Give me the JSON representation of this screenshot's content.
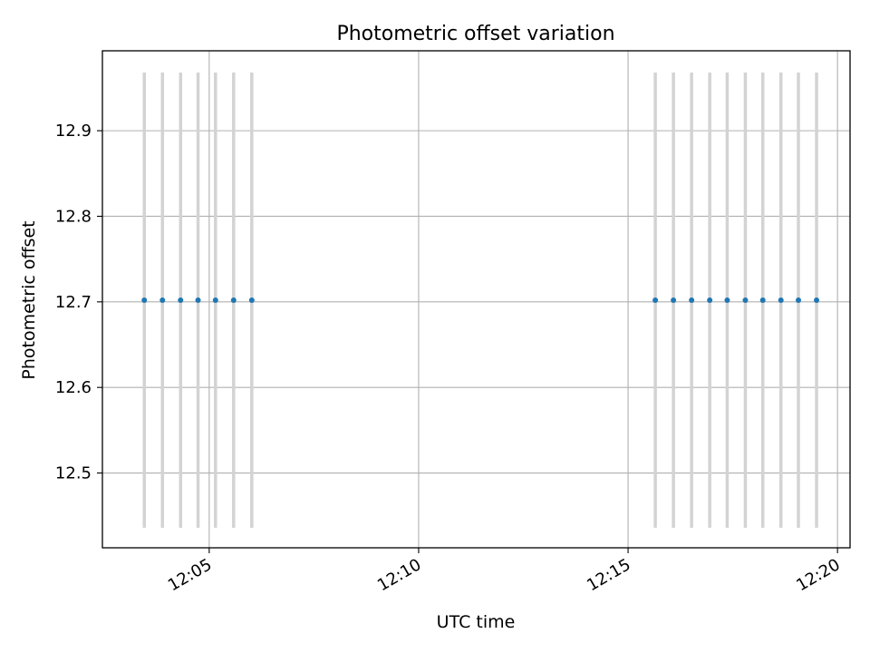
{
  "chart_data": {
    "type": "scatter",
    "title": "Photometric offset variation",
    "xlabel": "UTC time",
    "ylabel": "Photometric offset",
    "x_unit": "time (HH:MM:SS, UTC)",
    "xlim": [
      "12:02:27",
      "12:20:18"
    ],
    "ylim": [
      12.4126,
      12.9934
    ],
    "x_ticks": [
      "12:05",
      "12:10",
      "12:15",
      "12:20"
    ],
    "y_ticks": [
      "12.5",
      "12.6",
      "12.7",
      "12.8",
      "12.9"
    ],
    "grid": true,
    "points": [
      {
        "x": "12:03:27",
        "y": 12.702,
        "err_low": 12.436,
        "err_high": 12.968
      },
      {
        "x": "12:03:53",
        "y": 12.702,
        "err_low": 12.436,
        "err_high": 12.968
      },
      {
        "x": "12:04:19",
        "y": 12.702,
        "err_low": 12.436,
        "err_high": 12.968
      },
      {
        "x": "12:04:44",
        "y": 12.702,
        "err_low": 12.436,
        "err_high": 12.968
      },
      {
        "x": "12:05:09",
        "y": 12.702,
        "err_low": 12.436,
        "err_high": 12.968
      },
      {
        "x": "12:05:35",
        "y": 12.702,
        "err_low": 12.436,
        "err_high": 12.968
      },
      {
        "x": "12:06:01",
        "y": 12.702,
        "err_low": 12.436,
        "err_high": 12.968
      },
      {
        "x": "12:15:39",
        "y": 12.702,
        "err_low": 12.436,
        "err_high": 12.968
      },
      {
        "x": "12:16:05",
        "y": 12.702,
        "err_low": 12.436,
        "err_high": 12.968
      },
      {
        "x": "12:16:31",
        "y": 12.702,
        "err_low": 12.436,
        "err_high": 12.968
      },
      {
        "x": "12:16:57",
        "y": 12.702,
        "err_low": 12.436,
        "err_high": 12.968
      },
      {
        "x": "12:17:22",
        "y": 12.702,
        "err_low": 12.436,
        "err_high": 12.968
      },
      {
        "x": "12:17:48",
        "y": 12.702,
        "err_low": 12.436,
        "err_high": 12.968
      },
      {
        "x": "12:18:13",
        "y": 12.702,
        "err_low": 12.436,
        "err_high": 12.968
      },
      {
        "x": "12:18:39",
        "y": 12.702,
        "err_low": 12.436,
        "err_high": 12.968
      },
      {
        "x": "12:19:04",
        "y": 12.702,
        "err_low": 12.436,
        "err_high": 12.968
      },
      {
        "x": "12:19:30",
        "y": 12.702,
        "err_low": 12.436,
        "err_high": 12.968
      }
    ],
    "colors": {
      "marker": "#1f77b4",
      "errorbar": "#d3d3d3",
      "grid": "#b0b0b0",
      "axes": "#000000"
    }
  }
}
